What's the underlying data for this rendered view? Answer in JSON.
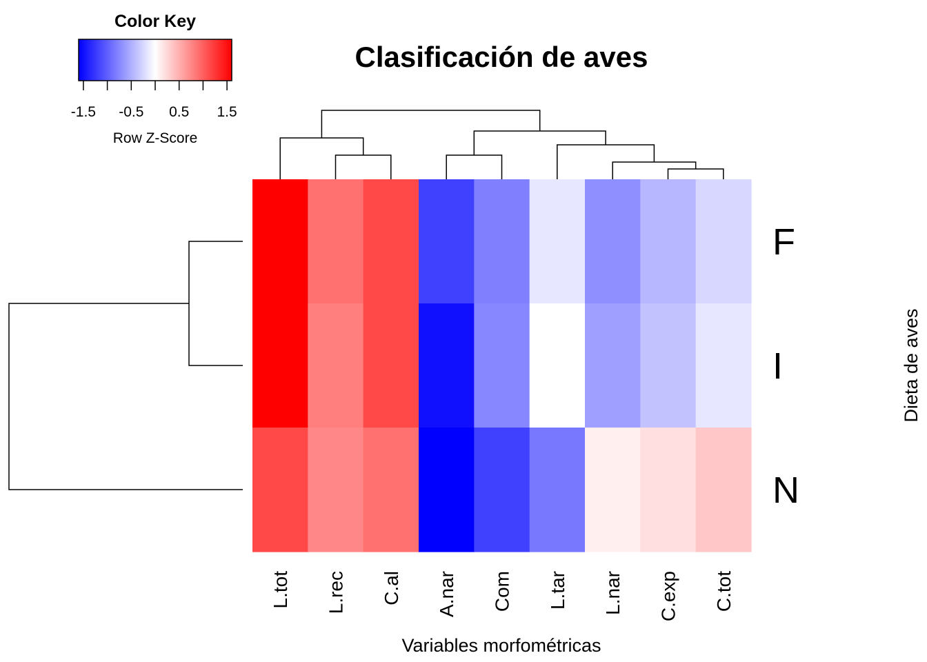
{
  "chart_data": {
    "type": "heatmap",
    "title": "Clasificación de aves",
    "xlabel": "Variables morfométricas",
    "ylabel": "Dieta de aves",
    "columns": [
      "L.tot",
      "L.rec",
      "C.al",
      "A.nar",
      "Com",
      "L.tar",
      "L.nar",
      "C.exp",
      "C.tot"
    ],
    "rows": [
      "F",
      "I",
      "N"
    ],
    "values": [
      [
        1.6,
        0.9,
        1.15,
        -1.2,
        -0.8,
        -0.15,
        -0.7,
        -0.45,
        -0.25
      ],
      [
        1.6,
        0.8,
        1.15,
        -1.5,
        -0.75,
        0.0,
        -0.6,
        -0.38,
        -0.15
      ],
      [
        1.15,
        0.75,
        0.9,
        -1.6,
        -1.2,
        -0.85,
        0.1,
        0.2,
        0.35
      ]
    ],
    "color_key": {
      "title": "Color Key",
      "label": "Row Z-Score",
      "range": [
        -1.6,
        1.6
      ],
      "ticks": [
        "-1.5",
        "-0.5",
        "0.5",
        "1.5"
      ],
      "tick_values": [
        -1.5,
        -0.5,
        0.5,
        1.5
      ],
      "minor_tick_values": [
        -1.5,
        -1.0,
        -0.5,
        0.0,
        0.5,
        1.0,
        1.5
      ],
      "colors": [
        "#0000ff",
        "#ffffff",
        "#ff0000"
      ]
    },
    "column_dendrogram": [
      {
        "a": 1,
        "b": 2,
        "h": 0.35
      },
      {
        "a": 0,
        "b": 9,
        "h": 0.6
      },
      {
        "a": 3,
        "b": 4,
        "h": 0.35
      },
      {
        "a": 7,
        "b": 8,
        "h": 0.15
      },
      {
        "a": 6,
        "b": 12,
        "h": 0.25
      },
      {
        "a": 5,
        "b": 13,
        "h": 0.5
      },
      {
        "a": 11,
        "b": 14,
        "h": 0.7
      },
      {
        "a": 10,
        "b": 15,
        "h": 1.0
      }
    ],
    "row_dendrogram": [
      {
        "a": 0,
        "b": 1,
        "h": 0.23
      },
      {
        "a": 2,
        "b": 3,
        "h": 1.0
      }
    ]
  }
}
